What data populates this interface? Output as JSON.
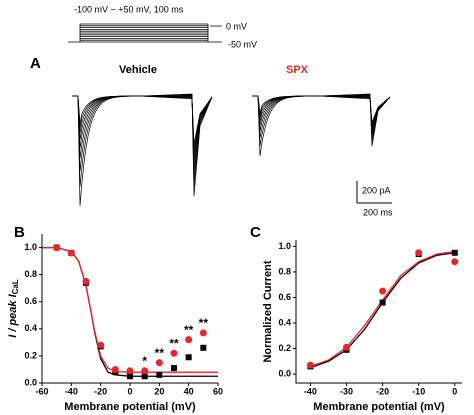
{
  "panel_a": {
    "letter": "A",
    "protocol": "-100 mV ~ +50 mV, 100 ms",
    "level_high": "0 mV",
    "level_low": "-50 mV",
    "vehicle": "Vehicle",
    "spx": "SPX",
    "scale_current": "200 pA",
    "scale_time": "200 ms"
  },
  "chart_data": [
    {
      "type": "scatter",
      "letter": "B",
      "ylabel": "I / peak I",
      "ylabel_sub": "CaL",
      "xlabel": "Membrane potential (mV)",
      "x": [
        -50,
        -40,
        -30,
        -20,
        -10,
        0,
        10,
        20,
        30,
        40,
        50
      ],
      "xlim": [
        -60,
        60
      ],
      "xticks": [
        -60,
        -40,
        -20,
        0,
        20,
        40,
        60
      ],
      "ylim": [
        0,
        1.1
      ],
      "yticks": [
        {
          "value": 0,
          "label": "0.0"
        },
        0.2,
        0.4,
        0.6,
        0.8,
        {
          "value": 1,
          "label": "1.0"
        }
      ],
      "fit_x": [
        -60,
        -50,
        -40,
        -35,
        -30,
        -27,
        -24,
        -20,
        -15,
        -10,
        0,
        60
      ],
      "series": [
        {
          "color": "#000000",
          "marker": "square",
          "values": [
            1.0,
            0.96,
            0.74,
            0.27,
            0.08,
            0.05,
            0.05,
            0.06,
            0.11,
            0.19,
            0.26
          ],
          "fit": [
            1.0,
            1.0,
            0.97,
            0.9,
            0.72,
            0.55,
            0.37,
            0.18,
            0.08,
            0.06,
            0.05,
            0.05
          ]
        },
        {
          "color": "#e8262a",
          "marker": "circle",
          "values": [
            1.0,
            0.96,
            0.75,
            0.28,
            0.1,
            0.09,
            0.09,
            0.15,
            0.22,
            0.32,
            0.37
          ],
          "fit": [
            1.0,
            1.0,
            0.97,
            0.9,
            0.72,
            0.55,
            0.38,
            0.2,
            0.11,
            0.085,
            0.08,
            0.08
          ]
        }
      ],
      "annotations": [
        {
          "x": 10,
          "text": "*"
        },
        {
          "x": 20,
          "text": "**"
        },
        {
          "x": 30,
          "text": "**"
        },
        {
          "x": 40,
          "text": "**"
        },
        {
          "x": 50,
          "text": "**"
        }
      ]
    },
    {
      "type": "scatter",
      "letter": "C",
      "ylabel": "Normalized Current",
      "xlabel": "Membrane potential (mV)",
      "x": [
        -40,
        -30,
        -20,
        -10,
        0
      ],
      "xlim": [
        -44,
        2
      ],
      "xticks": [
        -40,
        -30,
        -20,
        -10,
        0
      ],
      "ylim": [
        -0.07,
        1.05
      ],
      "yticks": [
        {
          "value": 0,
          "label": "0.0"
        },
        0.2,
        0.4,
        0.6,
        0.8,
        {
          "value": 1,
          "label": "1.0"
        }
      ],
      "fit_x": [
        -40,
        -35,
        -30,
        -25,
        -20,
        -15,
        -10,
        -5,
        0
      ],
      "series": [
        {
          "color": "#000000",
          "marker": "square",
          "values": [
            0.06,
            0.19,
            0.56,
            0.94,
            0.95
          ],
          "fit": [
            0.05,
            0.1,
            0.19,
            0.35,
            0.56,
            0.75,
            0.87,
            0.93,
            0.95
          ]
        },
        {
          "color": "#e8262a",
          "marker": "circle",
          "values": [
            0.07,
            0.21,
            0.65,
            0.95,
            0.88
          ],
          "fit": [
            0.06,
            0.11,
            0.21,
            0.38,
            0.58,
            0.77,
            0.88,
            0.94,
            0.96
          ]
        }
      ]
    }
  ]
}
